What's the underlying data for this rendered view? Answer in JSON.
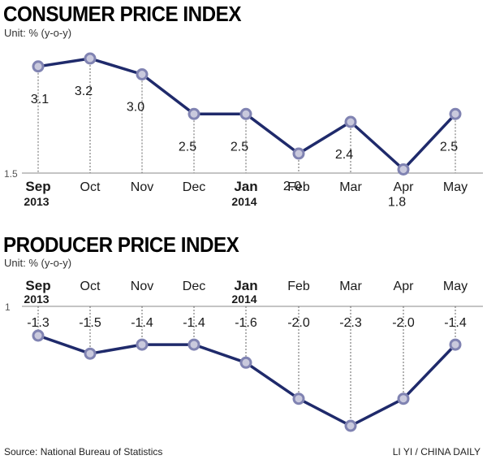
{
  "source": "Source: National Bureau of Statistics",
  "credit": "LI YI / CHINA DAILY",
  "colors": {
    "line": "#1f2a6b",
    "marker_fill": "#c9c9dd",
    "marker_stroke": "#8083b2"
  },
  "chart_data": [
    {
      "type": "line",
      "title": "CONSUMER PRICE INDEX",
      "unit": "Unit: % (y-o-y)",
      "categories": [
        "Sep",
        "Oct",
        "Nov",
        "Dec",
        "Jan",
        "Feb",
        "Mar",
        "Apr",
        "May"
      ],
      "year_labels": [
        "2013",
        "",
        "",
        "",
        "2014",
        "",
        "",
        "",
        ""
      ],
      "bold_categories": [
        "Sep",
        "Jan"
      ],
      "values": [
        3.1,
        3.2,
        3.0,
        2.5,
        2.5,
        2.0,
        2.4,
        1.8,
        2.5
      ],
      "labels": [
        "3.1",
        "3.2",
        "3.0",
        "2.5",
        "2.5",
        "2.0",
        "2.4",
        "1.8",
        "2.5"
      ],
      "baseline_label": "1.5",
      "ylim": [
        1.5,
        3.3
      ],
      "category_position": "bottom",
      "grid": "vertical dotted drop lines"
    },
    {
      "type": "line",
      "title": "PRODUCER PRICE INDEX",
      "unit": "Unit: % (y-o-y)",
      "categories": [
        "Sep",
        "Oct",
        "Nov",
        "Dec",
        "Jan",
        "Feb",
        "Mar",
        "Apr",
        "May"
      ],
      "year_labels": [
        "2013",
        "",
        "",
        "",
        "2014",
        "",
        "",
        "",
        ""
      ],
      "bold_categories": [
        "Sep",
        "Jan"
      ],
      "values": [
        -1.3,
        -1.5,
        -1.4,
        -1.4,
        -1.6,
        -2.0,
        -2.3,
        -2.0,
        -1.4
      ],
      "labels": [
        "-1.3",
        "-1.5",
        "-1.4",
        "-1.4",
        "-1.6",
        "-2.0",
        "-2.3",
        "-2.0",
        "-1.4"
      ],
      "baseline_label": "1",
      "ylim": [
        -2.35,
        -1.0
      ],
      "category_position": "top",
      "grid": "vertical dotted rise lines"
    }
  ]
}
